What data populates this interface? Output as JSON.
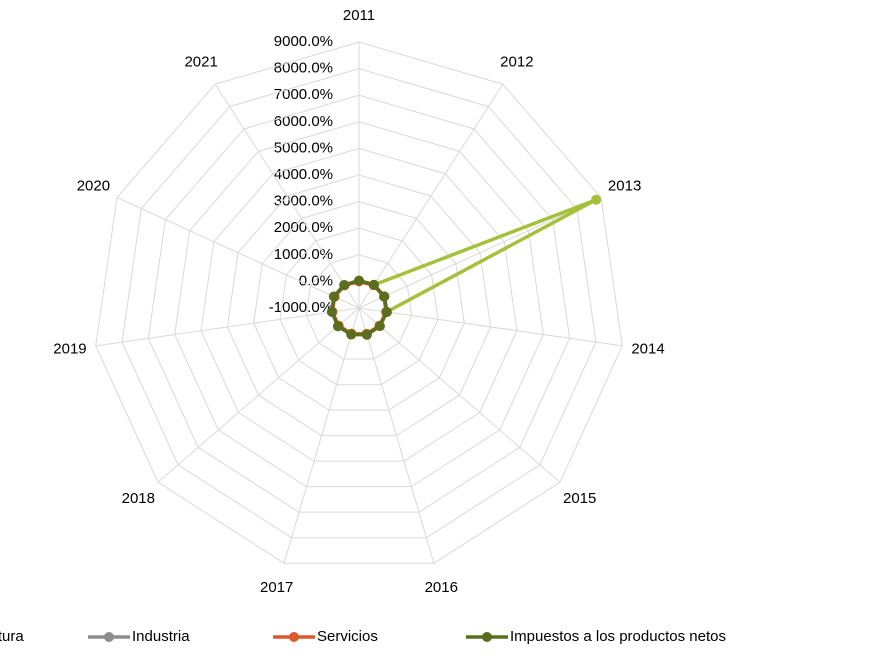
{
  "chart_data": {
    "type": "radar",
    "categories": [
      "2011",
      "2012",
      "2013",
      "2014",
      "2015",
      "2016",
      "2017",
      "2018",
      "2019",
      "2020",
      "2021"
    ],
    "series": [
      {
        "name": "Agricultura",
        "color": "#a5c13a",
        "values": [
          10,
          30,
          8800,
          50,
          20,
          10,
          5,
          10,
          20,
          15,
          10
        ]
      },
      {
        "name": "Industria",
        "color": "#8c8c8c",
        "values": [
          20,
          30,
          40,
          40,
          30,
          30,
          20,
          30,
          20,
          20,
          20
        ]
      },
      {
        "name": "Servicios",
        "color": "#e0582a",
        "values": [
          0,
          20,
          30,
          30,
          20,
          20,
          10,
          20,
          10,
          10,
          10
        ]
      },
      {
        "name": "Impuestos a los productos netos",
        "color": "#5b6e1e",
        "values": [
          30,
          40,
          50,
          60,
          40,
          50,
          40,
          50,
          30,
          40,
          30
        ]
      }
    ],
    "ylim": [
      -1000,
      9000
    ],
    "yticks": [
      {
        "value": -1000,
        "label": "-1000.0%"
      },
      {
        "value": 0,
        "label": "0.0%"
      },
      {
        "value": 1000,
        "label": "1000.0%"
      },
      {
        "value": 2000,
        "label": "2000.0%"
      },
      {
        "value": 3000,
        "label": "3000.0%"
      },
      {
        "value": 4000,
        "label": "4000.0%"
      },
      {
        "value": 5000,
        "label": "5000.0%"
      },
      {
        "value": 6000,
        "label": "6000.0%"
      },
      {
        "value": 7000,
        "label": "7000.0%"
      },
      {
        "value": 8000,
        "label": "8000.0%"
      },
      {
        "value": 9000,
        "label": "9000.0%"
      }
    ],
    "grid": true,
    "legend": "bottom"
  }
}
